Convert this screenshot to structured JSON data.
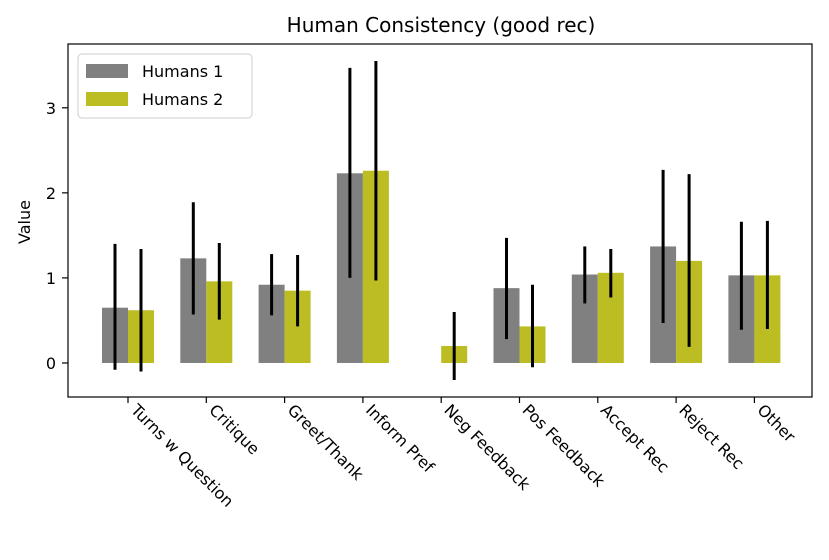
{
  "chart_data": {
    "type": "bar",
    "title": "Human Consistency (good rec)",
    "xlabel": "",
    "ylabel": "Value",
    "ylim": [
      -0.4,
      3.75
    ],
    "yticks": [
      0,
      1,
      2,
      3
    ],
    "categories": [
      "Turns w Question",
      "Critique",
      "Greet/Thank",
      "Inform Pref",
      "Neg Feedback",
      "Pos Feedback",
      "Accept Rec",
      "Reject Rec",
      "Other"
    ],
    "series": [
      {
        "name": "Humans 1",
        "color": "#808080",
        "values": [
          0.65,
          1.23,
          0.92,
          2.23,
          0.0,
          0.88,
          1.04,
          1.37,
          1.03
        ],
        "error_low": [
          -0.08,
          0.57,
          0.56,
          1.0,
          null,
          0.28,
          0.7,
          0.47,
          0.39
        ],
        "error_high": [
          1.4,
          1.89,
          1.28,
          3.47,
          null,
          1.47,
          1.37,
          2.27,
          1.66
        ]
      },
      {
        "name": "Humans 2",
        "color": "#bcbd22",
        "values": [
          0.62,
          0.96,
          0.85,
          2.26,
          0.2,
          0.43,
          1.06,
          1.2,
          1.03
        ],
        "error_low": [
          -0.1,
          0.51,
          0.43,
          0.97,
          -0.2,
          -0.05,
          0.77,
          0.19,
          0.4
        ],
        "error_high": [
          1.34,
          1.41,
          1.27,
          3.55,
          0.6,
          0.92,
          1.34,
          2.22,
          1.67
        ]
      }
    ],
    "legend": "top-left",
    "grid": false
  }
}
